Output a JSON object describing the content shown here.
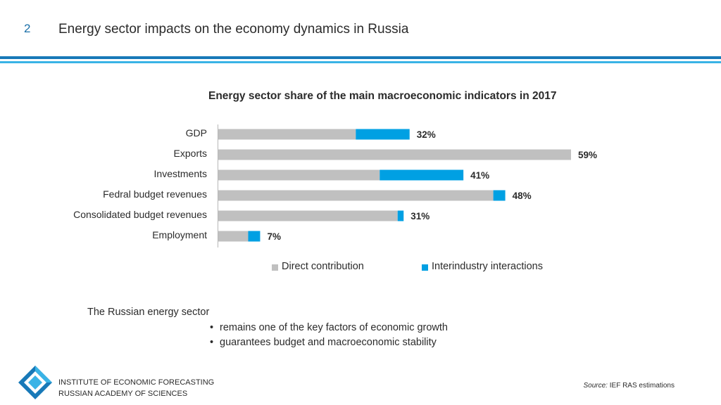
{
  "header": {
    "slide_number": "2",
    "title": "Energy sector impacts on the economy dynamics in Russia"
  },
  "chart_data": {
    "type": "bar",
    "orientation": "horizontal",
    "stacked": true,
    "title": "Energy sector share of the main macroeconomic indicators in 2017",
    "categories": [
      "GDP",
      "Exports",
      "Investments",
      "Fedral budget revenues",
      "Consolidated budget revenues",
      "Employment"
    ],
    "series": [
      {
        "name": "Direct contribution",
        "color": "#c0c0c0",
        "values": [
          23,
          59,
          27,
          46,
          30,
          5
        ]
      },
      {
        "name": "Interindustry interactions",
        "color": "#00a0e3",
        "values": [
          9,
          0,
          14,
          2,
          1,
          2
        ]
      }
    ],
    "totals": [
      "32%",
      "59%",
      "41%",
      "48%",
      "31%",
      "7%"
    ],
    "xlim": [
      0,
      59
    ],
    "grid": false,
    "legend_position": "bottom"
  },
  "legend": {
    "direct": "Direct contribution",
    "inter": "Interindustry interactions"
  },
  "summary": {
    "intro": "The Russian energy sector",
    "bullets": [
      "remains one of the key factors of economic growth",
      "guarantees budget and macroeconomic stability"
    ]
  },
  "footer": {
    "institute_line1": "INSTITUTE OF ECONOMIC FORECASTING",
    "institute_line2": "RUSSIAN ACADEMY OF SCIENCES",
    "source_prefix": "Source:",
    "source_text": " IEF RAS estimations"
  },
  "colors": {
    "accent_dark": "#1879b8",
    "accent_light": "#39b3e6",
    "direct": "#c0c0c0",
    "inter": "#00a0e3"
  },
  "icons": {
    "logo": "ief-ras-logo-icon"
  }
}
